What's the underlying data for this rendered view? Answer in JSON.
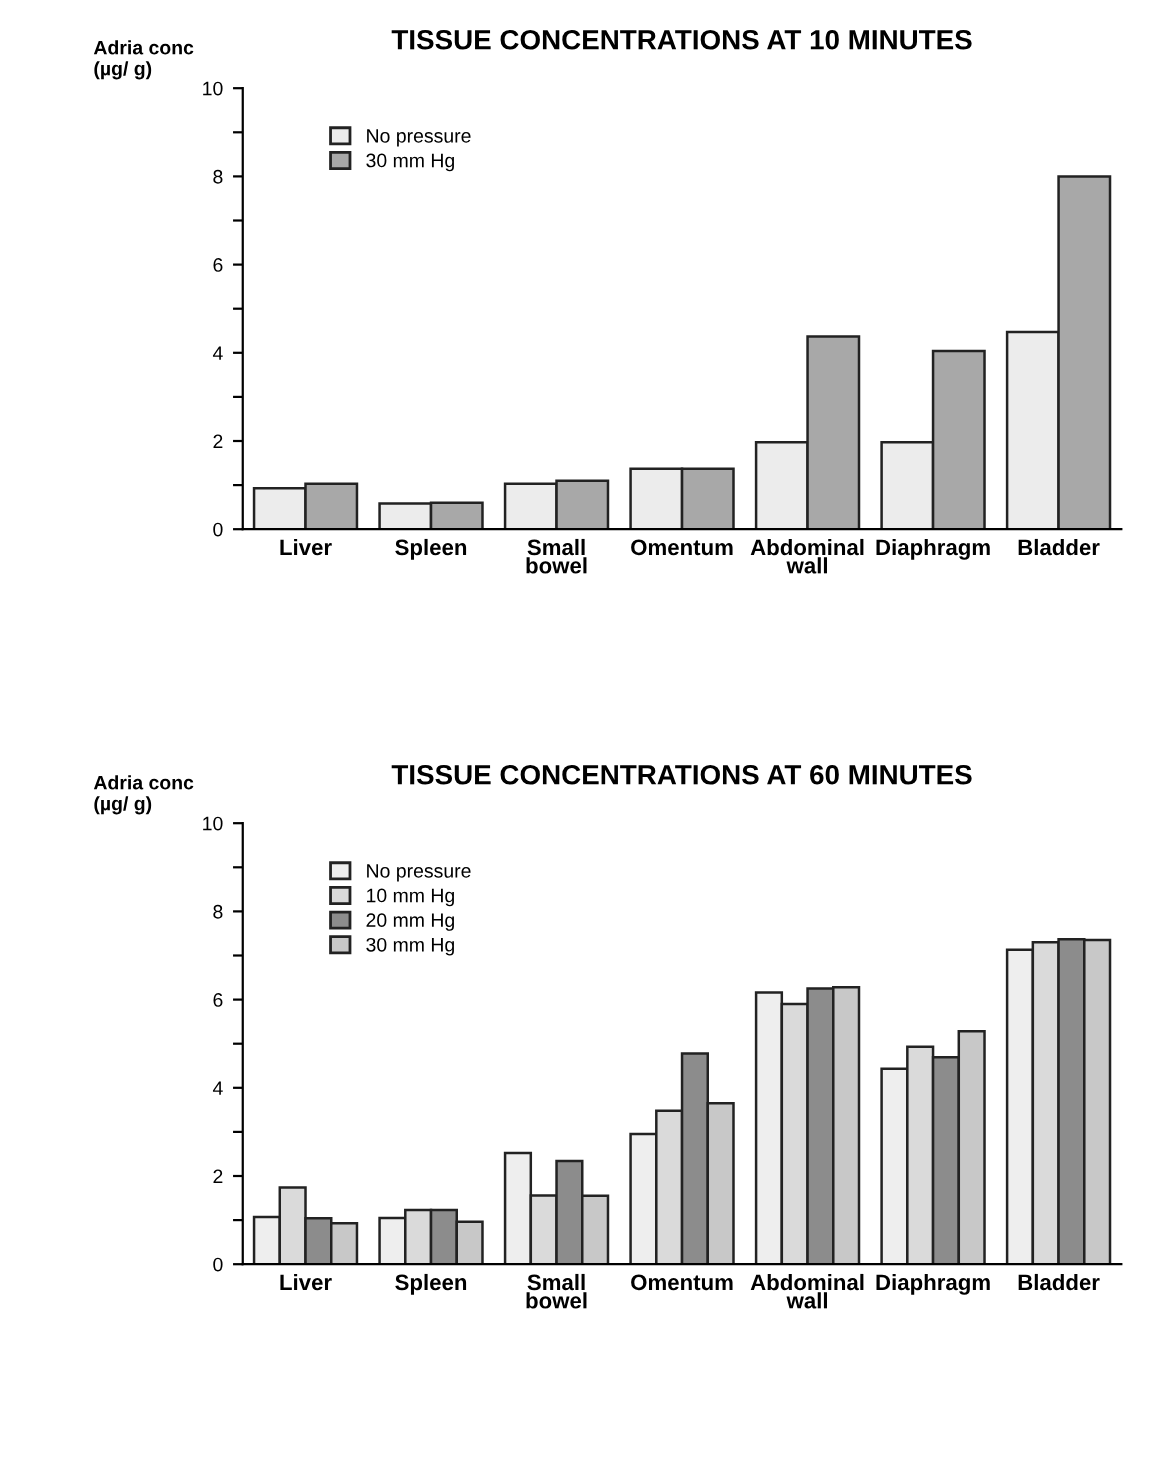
{
  "chart_data": [
    {
      "type": "bar",
      "title": "TISSUE CONCENTRATIONS AT 10 MINUTES",
      "ylabel": "Adria conc\n(µg/ g)",
      "categories": [
        "Liver",
        "Spleen",
        "Small\nbowel",
        "Omentum",
        "Abdominal\nwall",
        "Diaphragm",
        "Bladder"
      ],
      "series": [
        {
          "name": "No pressure",
          "color": "#ececec",
          "values": [
            0.93,
            0.58,
            1.03,
            1.37,
            1.97,
            1.97,
            4.47
          ]
        },
        {
          "name": "30 mm Hg",
          "color": "#a8a8a8",
          "values": [
            1.03,
            0.6,
            1.1,
            1.37,
            4.37,
            4.04,
            8.0
          ]
        }
      ],
      "ylim": [
        0,
        10
      ],
      "yticks": [
        0,
        {
          "value": 1,
          "label": null
        },
        2,
        {
          "value": 3,
          "label": null
        },
        4,
        {
          "value": 5,
          "label": null
        },
        6,
        {
          "value": 7,
          "label": null
        },
        8,
        {
          "value": 9,
          "label": null
        },
        10
      ],
      "legend": "top left",
      "grid": false
    },
    {
      "type": "bar",
      "title": "TISSUE CONCENTRATIONS AT 60 MINUTES",
      "ylabel": "Adria conc\n(µg/ g)",
      "categories": [
        "Liver",
        "Spleen",
        "Small\nbowel",
        "Omentum",
        "Abdominal\nwall",
        "Diaphragm",
        "Bladder"
      ],
      "series": [
        {
          "name": "No pressure",
          "color": "#eeeeee",
          "values": [
            1.07,
            1.05,
            2.52,
            2.95,
            6.16,
            4.43,
            7.13
          ]
        },
        {
          "name": "10 mm Hg",
          "color": "#dadada",
          "values": [
            1.74,
            1.23,
            1.56,
            3.48,
            5.9,
            4.93,
            7.3
          ]
        },
        {
          "name": "20 mm Hg",
          "color": "#8c8c8c",
          "values": [
            1.04,
            1.23,
            2.34,
            4.78,
            6.25,
            4.69,
            7.37
          ]
        },
        {
          "name": "30 mm Hg",
          "color": "#c8c8c8",
          "values": [
            0.93,
            0.96,
            1.55,
            3.65,
            6.28,
            5.28,
            7.35
          ]
        }
      ],
      "ylim": [
        0,
        10
      ],
      "yticks": [
        0,
        {
          "value": 1,
          "label": null
        },
        2,
        {
          "value": 3,
          "label": null
        },
        4,
        {
          "value": 5,
          "label": null
        },
        6,
        {
          "value": 7,
          "label": null
        },
        8,
        {
          "value": 9,
          "label": null
        },
        10
      ],
      "legend": "top left",
      "grid": false
    }
  ]
}
